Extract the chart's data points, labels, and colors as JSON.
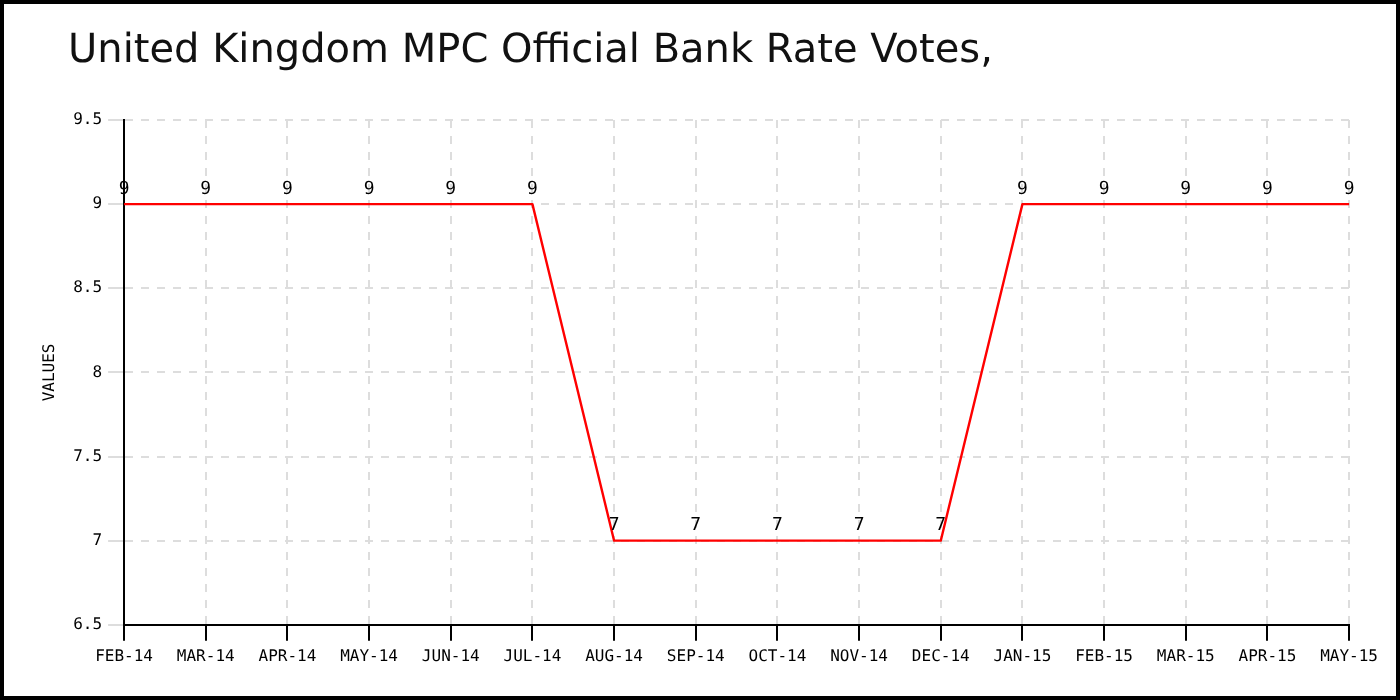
{
  "chart_data": {
    "type": "line",
    "title": "United Kingdom MPC Official Bank Rate Votes,",
    "ylabel": "VALUES",
    "categories": [
      "FEB-14",
      "MAR-14",
      "APR-14",
      "MAY-14",
      "JUN-14",
      "JUL-14",
      "AUG-14",
      "SEP-14",
      "OCT-14",
      "NOV-14",
      "DEC-14",
      "JAN-15",
      "FEB-15",
      "MAR-15",
      "APR-15",
      "MAY-15"
    ],
    "series": [
      {
        "color": "#ff0000",
        "values": [
          9,
          9,
          9,
          9,
          9,
          9,
          7,
          7,
          7,
          7,
          7,
          9,
          9,
          9,
          9,
          9
        ]
      }
    ],
    "ylim": [
      6.5,
      9.5
    ],
    "yticks": [
      6.5,
      7,
      7.5,
      8,
      8.5,
      9,
      9.5
    ],
    "grid": true,
    "legend": false,
    "marker": "none",
    "line_style": "solid",
    "data_labels": true
  }
}
